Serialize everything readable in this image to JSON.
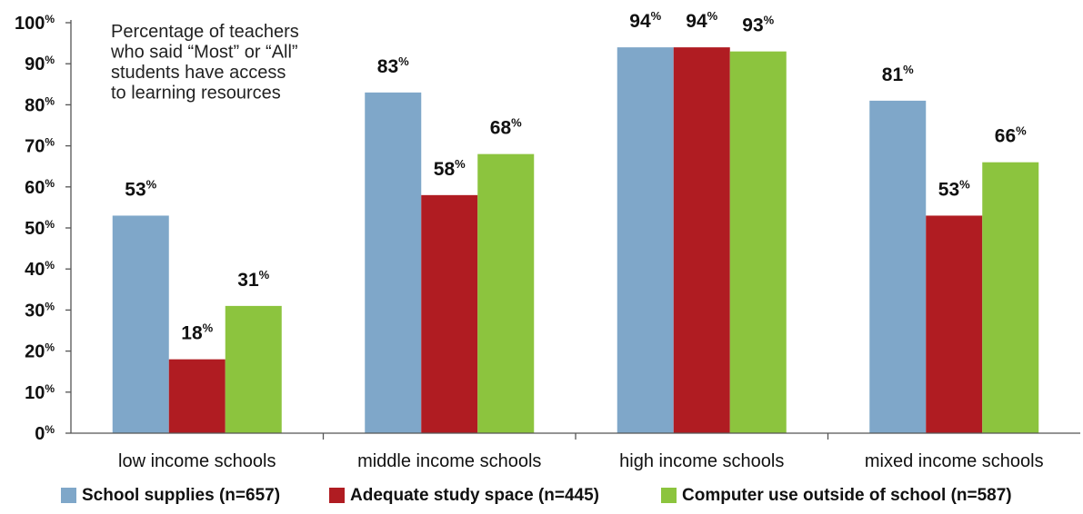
{
  "chart_data": {
    "type": "bar",
    "categories": [
      "low income schools",
      "middle income schools",
      "high income schools",
      "mixed income schools"
    ],
    "series": [
      {
        "name": "School supplies",
        "n": "(n=657)",
        "color": "#7fa7c9",
        "values": [
          53,
          83,
          94,
          81
        ]
      },
      {
        "name": "Adequate study space",
        "n": "(n=445)",
        "color": "#b01c22",
        "values": [
          18,
          58,
          94,
          53
        ]
      },
      {
        "name": "Computer use outside of school",
        "n": "(n=587)",
        "color": "#8cc43e",
        "values": [
          31,
          68,
          93,
          66
        ]
      }
    ],
    "ylim": [
      0,
      100
    ],
    "yticks": [
      0,
      10,
      20,
      30,
      40,
      50,
      60,
      70,
      80,
      90,
      100
    ],
    "unit_symbol": "%",
    "annotation_lines": [
      "Percentage of teachers",
      "who said “Most” or “All”",
      "students have access",
      "to learning resources"
    ],
    "legend_position": "bottom",
    "grid": false
  }
}
